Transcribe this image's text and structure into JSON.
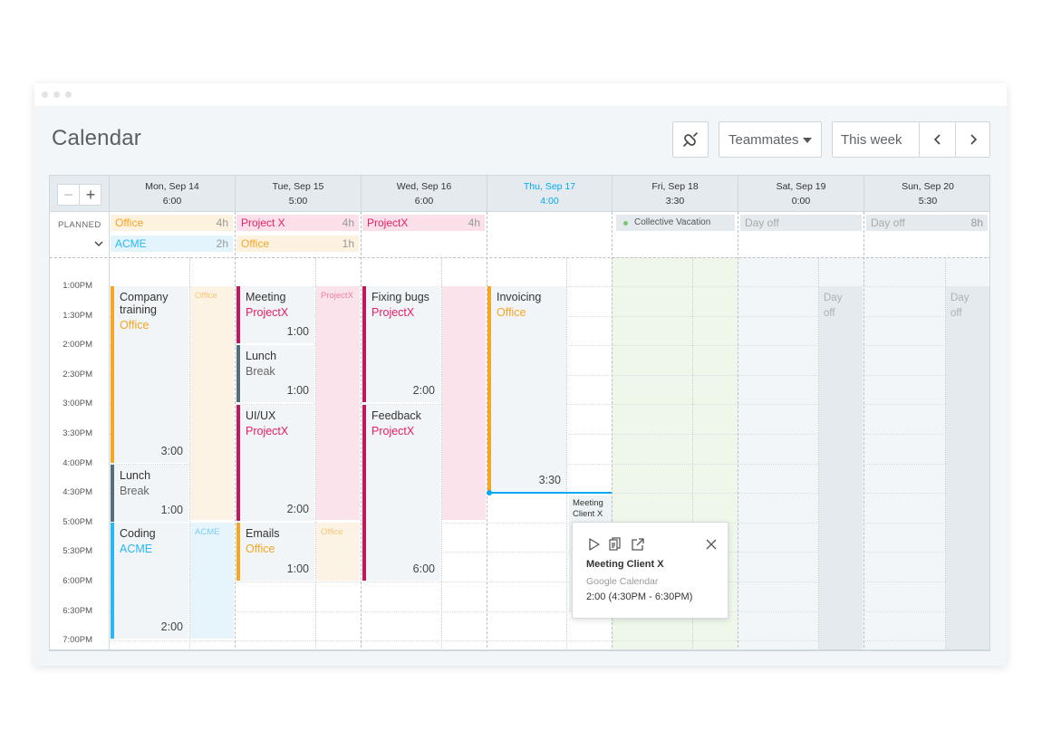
{
  "page_title": "Calendar",
  "toolbar": {
    "sync_icon": "sync-icon",
    "teammates_label": "Teammates",
    "range_label": "This week",
    "prev_icon": "chevron-left-icon",
    "next_icon": "chevron-right-icon"
  },
  "zoom": {
    "minus": "−",
    "plus": "+"
  },
  "planned_label": "PLANNED",
  "days": [
    {
      "date": "Mon, Sep 14",
      "total": "6:00"
    },
    {
      "date": "Tue, Sep 15",
      "total": "5:00"
    },
    {
      "date": "Wed, Sep 16",
      "total": "6:00"
    },
    {
      "date": "Thu, Sep 17",
      "total": "4:00"
    },
    {
      "date": "Fri, Sep 18",
      "total": "3:30"
    },
    {
      "date": "Sat, Sep 19",
      "total": "0:00"
    },
    {
      "date": "Sun, Sep 20",
      "total": "5:30"
    }
  ],
  "planned": {
    "mon": [
      {
        "label": "Office",
        "hours": "4h"
      },
      {
        "label": "ACME",
        "hours": "2h"
      }
    ],
    "tue": [
      {
        "label": "Project X",
        "hours": "4h"
      },
      {
        "label": "Office",
        "hours": "1h"
      }
    ],
    "wed": [
      {
        "label": "ProjectX",
        "hours": "4h"
      }
    ],
    "fri": [
      {
        "label": "Collective Vacation"
      }
    ],
    "sat": [
      {
        "label": "Day off"
      }
    ],
    "sun": [
      {
        "label": "Day off",
        "hours": "8h"
      }
    ]
  },
  "times": [
    "1:00PM",
    "1:30PM",
    "2:00PM",
    "2:30PM",
    "3:00PM",
    "3:30PM",
    "4:00PM",
    "4:30PM",
    "5:00PM",
    "5:30PM",
    "6:00PM",
    "6:30PM",
    "7:00PM"
  ],
  "events": {
    "company_training": {
      "title": "Company training",
      "project": "Office",
      "duration": "3:00"
    },
    "mon_lunch": {
      "title": "Lunch",
      "project": "Break",
      "duration": "1:00"
    },
    "coding": {
      "title": "Coding",
      "project": "ACME",
      "duration": "2:00"
    },
    "meeting": {
      "title": "Meeting",
      "project": "ProjectX",
      "duration": "1:00"
    },
    "tue_lunch": {
      "title": "Lunch",
      "project": "Break",
      "duration": "1:00"
    },
    "uiux": {
      "title": "UI/UX",
      "project": "ProjectX",
      "duration": "2:00"
    },
    "emails": {
      "title": "Emails",
      "project": "Office",
      "duration": "1:00"
    },
    "fixing_bugs": {
      "title": "Fixing bugs",
      "project": "ProjectX",
      "duration": "2:00"
    },
    "feedback": {
      "title": "Feedback",
      "project": "ProjectX",
      "duration": "6:00"
    },
    "invoicing": {
      "title": "Invoicing",
      "project": "Office",
      "duration": "3:30"
    },
    "meeting_client": {
      "title": "Meeting Client X"
    }
  },
  "ghosts": {
    "mon_office": "Office",
    "mon_acme": "ACME",
    "tue_projectx": "ProjectX",
    "tue_office": "Office",
    "sat_dayoff": "Day off",
    "sun_dayoff": "Day off"
  },
  "popup": {
    "title": "Meeting Client X",
    "source": "Google Calendar",
    "time": "2:00 (4:30PM - 6:30PM)",
    "icons": [
      "play-icon",
      "duplicate-icon",
      "open-external-icon",
      "close-icon"
    ]
  },
  "colors": {
    "office": "#f5a623",
    "projectx": "#e91e63",
    "acme": "#29b6f6",
    "break": "#546e7a",
    "today": "#03a9f4"
  }
}
